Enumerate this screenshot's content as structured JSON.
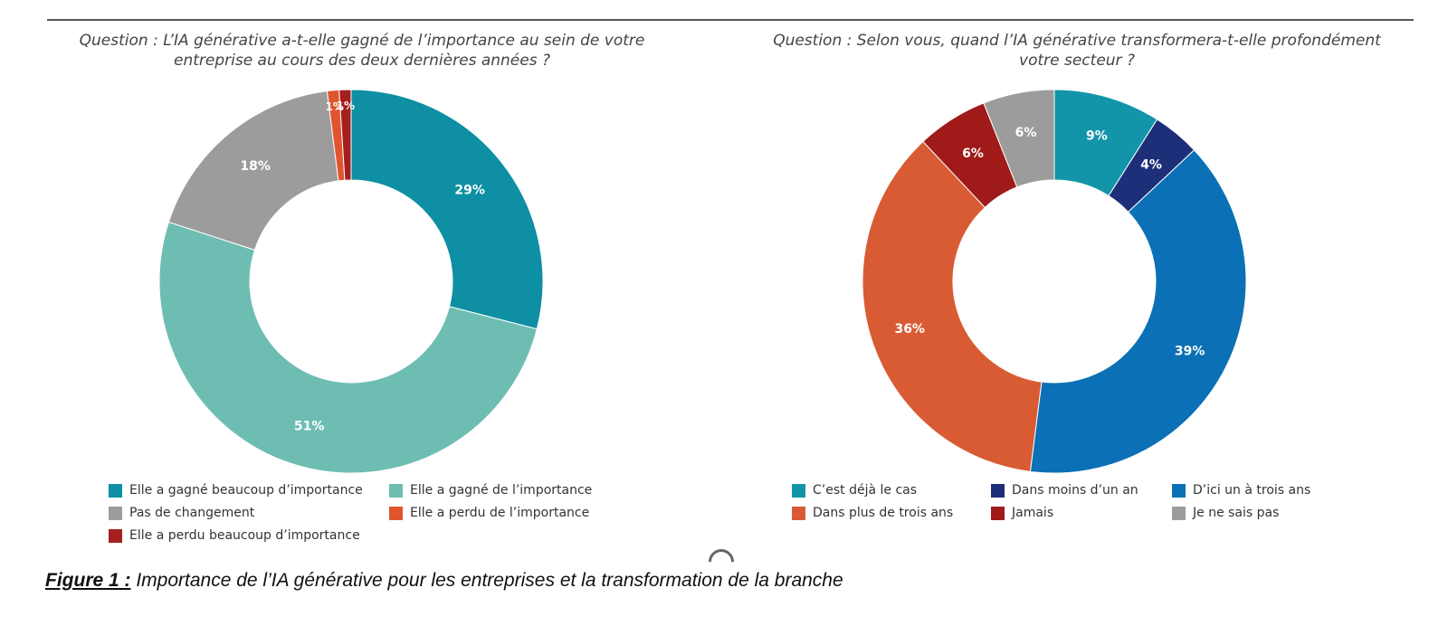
{
  "chart_data": [
    {
      "type": "pie",
      "title": "Question : L’IA générative a-t-elle gagné de l’importance au sein de votre entreprise au cours des deux dernières années ?",
      "categories": [
        "Elle a gagné beaucoup d’importance",
        "Elle a gagné de l’importance",
        "Pas de changement",
        "Elle a perdu de l’importance",
        "Elle a perdu beaucoup d’importance"
      ],
      "values": [
        29,
        51,
        18,
        1,
        1
      ],
      "labels": [
        "29%",
        "51%",
        "18%",
        "1%",
        "1%"
      ],
      "colors": [
        "#0e8fa3",
        "#6ebdb3",
        "#9c9c9c",
        "#e0552f",
        "#a51f1f"
      ],
      "legend": "bottom"
    },
    {
      "type": "pie",
      "title": "Question : Selon vous, quand l’IA générative transformera-t-elle profondément votre secteur ?",
      "categories": [
        "C’est déjà le cas",
        "Dans moins d’un an",
        "D’ici un à trois ans",
        "Dans plus de trois ans",
        "Jamais",
        "Je ne sais pas"
      ],
      "values": [
        9,
        4,
        39,
        36,
        6,
        6
      ],
      "labels": [
        "9%",
        "4%",
        "39%",
        "36%",
        "6%",
        "6%"
      ],
      "colors": [
        "#1295a8",
        "#1d2f78",
        "#0b70b5",
        "#d95b33",
        "#a01a1a",
        "#9c9c9c"
      ],
      "legend": "bottom"
    }
  ],
  "caption": {
    "lead": "Figure 1 :",
    "text": " Importance de l’IA générative pour les entreprises et la transformation de la branche"
  }
}
